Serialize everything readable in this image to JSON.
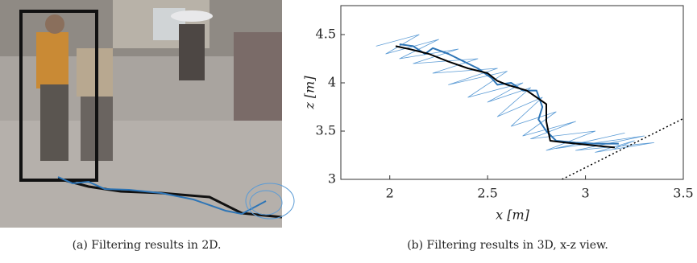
{
  "captions": [
    "(a) Filtering results in 2D.",
    "(b) Filtering results in 3D, x-z view."
  ],
  "chart_data": {
    "type": "line",
    "xlabel": "x [m]",
    "ylabel": "z [m]",
    "xlim": [
      1.75,
      3.5
    ],
    "ylim": [
      3,
      4.8
    ],
    "xticks": [
      2,
      2.5,
      3,
      3.5
    ],
    "yticks": [
      3,
      3.5,
      4,
      4.5
    ],
    "series": [
      {
        "color": "#5b9bd5",
        "width": 0.8,
        "x": [
          1.93,
          2.15,
          1.98,
          2.25,
          2.05,
          2.35,
          2.12,
          2.45,
          2.22,
          2.55,
          2.3,
          2.6,
          2.4,
          2.68,
          2.5,
          2.72,
          2.55,
          2.78,
          2.62,
          2.85,
          2.68,
          2.95,
          2.72,
          3.05,
          2.8,
          3.2,
          2.85,
          3.3,
          2.95,
          3.35,
          3.05,
          3.25,
          3.15
        ],
        "values": [
          4.38,
          4.5,
          4.3,
          4.45,
          4.25,
          4.35,
          4.2,
          4.25,
          4.1,
          4.15,
          3.98,
          4.12,
          3.85,
          4.0,
          3.8,
          3.95,
          3.65,
          3.85,
          3.55,
          3.7,
          3.45,
          3.6,
          3.42,
          3.5,
          3.3,
          3.48,
          3.32,
          3.45,
          3.3,
          3.38,
          3.28,
          3.4,
          3.32
        ]
      },
      {
        "color": "#2e75b6",
        "width": 2,
        "x": [
          2.05,
          2.12,
          2.18,
          2.22,
          2.3,
          2.38,
          2.45,
          2.52,
          2.55,
          2.62,
          2.68,
          2.75,
          2.78,
          2.76,
          2.8,
          2.85,
          2.95,
          3.05,
          3.17
        ],
        "values": [
          4.4,
          4.38,
          4.3,
          4.36,
          4.3,
          4.22,
          4.15,
          4.05,
          3.98,
          4.0,
          3.92,
          3.92,
          3.75,
          3.62,
          3.5,
          3.4,
          3.38,
          3.37,
          3.37
        ]
      },
      {
        "color": "#000000",
        "width": 2,
        "x": [
          2.03,
          2.1,
          2.2,
          2.3,
          2.4,
          2.5,
          2.55,
          2.6,
          2.7,
          2.75,
          2.8,
          2.8,
          2.82,
          2.9,
          3.0,
          3.1,
          3.15
        ],
        "values": [
          4.38,
          4.35,
          4.3,
          4.22,
          4.15,
          4.1,
          4.02,
          3.98,
          3.92,
          3.85,
          3.78,
          3.6,
          3.4,
          3.38,
          3.36,
          3.34,
          3.33
        ]
      },
      {
        "color": "#000000",
        "width": 1.5,
        "dash": "2 3",
        "x": [
          2.88,
          3.5
        ],
        "values": [
          3.0,
          3.63
        ]
      }
    ]
  }
}
